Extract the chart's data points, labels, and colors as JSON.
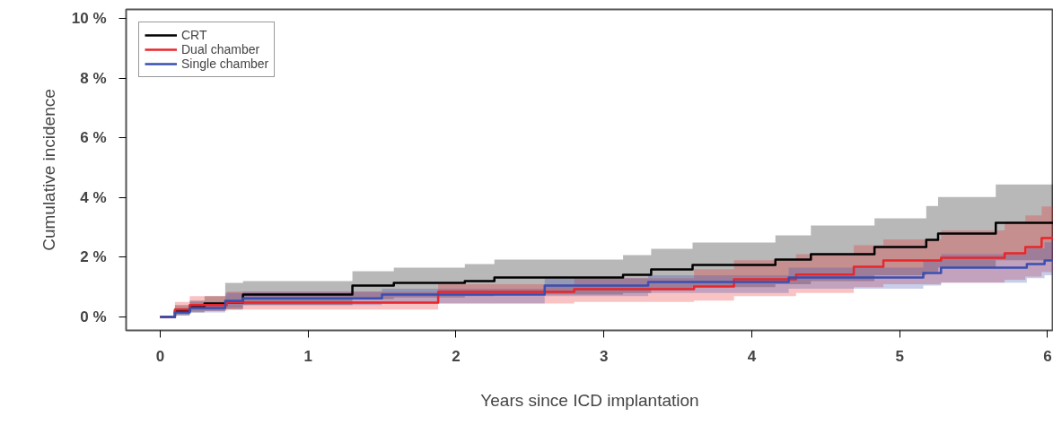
{
  "chart_data": {
    "type": "step",
    "xlabel": "Years since ICD implantation",
    "ylabel": "Cumulative incidence",
    "xlim": [
      -0.23,
      6.04
    ],
    "ylim": [
      -0.45,
      10.3
    ],
    "xticks": [
      0,
      1,
      2,
      3,
      4,
      5,
      6
    ],
    "yticks": [
      {
        "value": 0,
        "label": "0 %"
      },
      {
        "value": 2,
        "label": "2 %"
      },
      {
        "value": 4,
        "label": "4 %"
      },
      {
        "value": 6,
        "label": "6 %"
      },
      {
        "value": 8,
        "label": "8 %"
      },
      {
        "value": 10,
        "label": "10 %"
      }
    ],
    "grid": false,
    "legend": "top left",
    "line_style": "solid",
    "series": [
      {
        "name": "CRT",
        "color": "#000000",
        "x": [
          0,
          0.1,
          0.2,
          0.3,
          0.44,
          0.56,
          1.3,
          1.58,
          2.06,
          2.26,
          3.13,
          3.32,
          3.6,
          4.16,
          4.4,
          4.83,
          5.18,
          5.26,
          5.65,
          6.04
        ],
        "values": [
          0,
          0.2,
          0.35,
          0.45,
          0.48,
          0.75,
          1.05,
          1.14,
          1.2,
          1.32,
          1.41,
          1.59,
          1.74,
          1.92,
          2.1,
          2.34,
          2.58,
          2.79,
          3.15,
          3.15
        ],
        "upper": [
          0,
          0.4,
          0.55,
          0.7,
          1.14,
          1.2,
          1.53,
          1.65,
          1.77,
          1.92,
          2.07,
          2.28,
          2.49,
          2.73,
          3.06,
          3.3,
          3.72,
          4.02,
          4.44,
          4.44
        ],
        "lower": [
          0,
          0.05,
          0.15,
          0.2,
          0.25,
          0.4,
          0.6,
          0.65,
          0.7,
          0.75,
          0.8,
          0.9,
          1.0,
          1.1,
          1.2,
          1.4,
          1.5,
          1.65,
          1.9,
          1.9
        ]
      },
      {
        "name": "Dual chamber",
        "color": "#e8262a",
        "x": [
          0,
          0.1,
          0.2,
          0.45,
          1.88,
          2.8,
          3.61,
          3.88,
          4.3,
          4.69,
          4.89,
          5.28,
          5.71,
          5.85,
          5.96,
          6.04
        ],
        "values": [
          0,
          0.25,
          0.4,
          0.48,
          0.84,
          0.93,
          1.02,
          1.26,
          1.42,
          1.68,
          1.89,
          1.98,
          2.13,
          2.34,
          2.64,
          2.64
        ],
        "upper": [
          0,
          0.5,
          0.7,
          0.85,
          1.1,
          1.3,
          1.6,
          1.9,
          2.1,
          2.4,
          2.6,
          2.9,
          3.2,
          3.4,
          3.7,
          3.7
        ],
        "lower": [
          0,
          0.1,
          0.2,
          0.25,
          0.45,
          0.5,
          0.55,
          0.7,
          0.8,
          1.0,
          1.1,
          1.15,
          1.25,
          1.35,
          1.5,
          1.5
        ]
      },
      {
        "name": "Single chamber",
        "color": "#3a4fb0",
        "x": [
          0,
          0.1,
          0.2,
          0.44,
          0.56,
          1.5,
          2.6,
          3.3,
          4.25,
          5.16,
          5.28,
          5.86,
          5.98,
          6.04
        ],
        "values": [
          0,
          0.15,
          0.3,
          0.54,
          0.62,
          0.75,
          1.05,
          1.17,
          1.32,
          1.47,
          1.65,
          1.77,
          1.89,
          1.89
        ],
        "upper": [
          0,
          0.3,
          0.5,
          0.8,
          0.85,
          0.95,
          1.3,
          1.4,
          1.65,
          1.9,
          2.1,
          2.3,
          2.5,
          2.5
        ],
        "lower": [
          0,
          0.05,
          0.15,
          0.3,
          0.4,
          0.45,
          0.7,
          0.8,
          0.95,
          1.05,
          1.15,
          1.3,
          1.4,
          1.4
        ]
      }
    ]
  }
}
